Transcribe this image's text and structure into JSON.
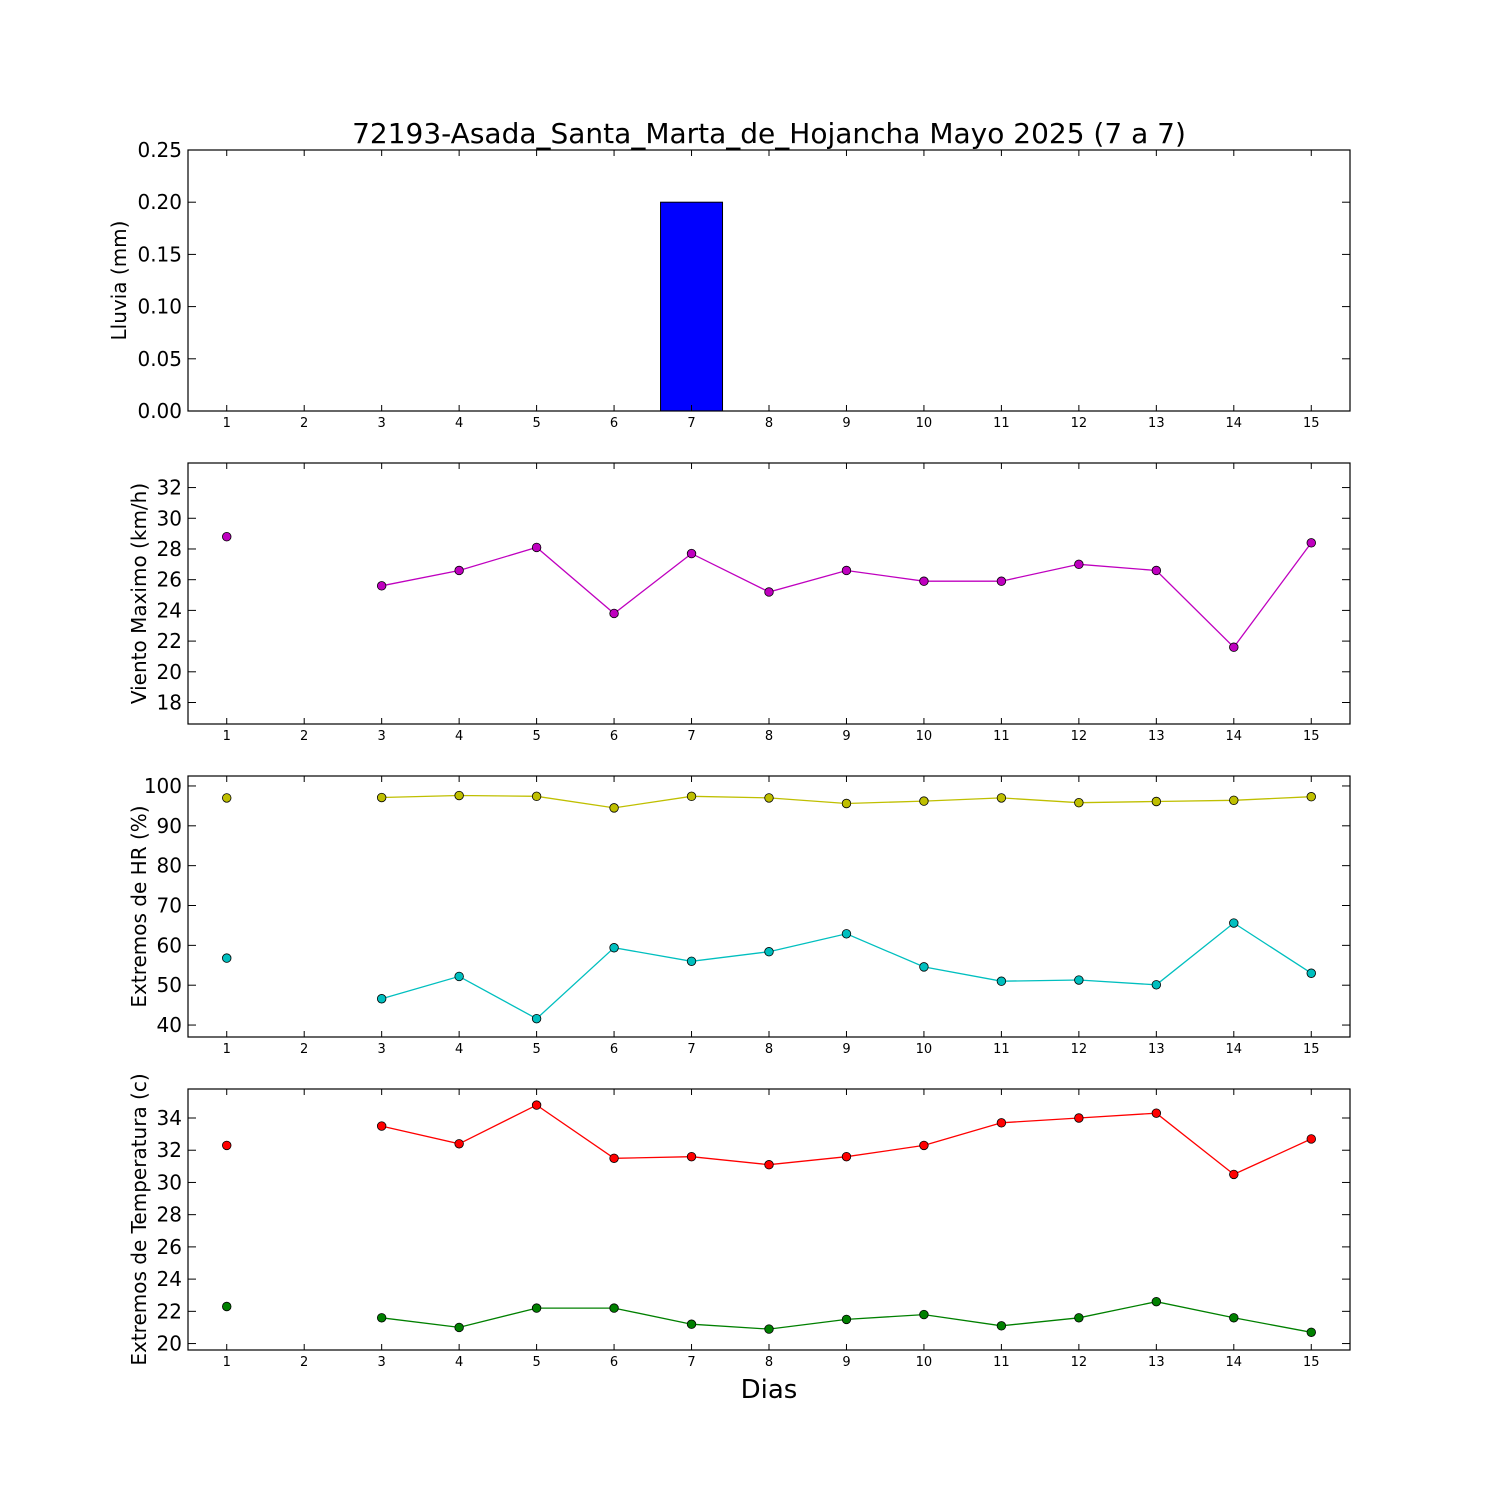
{
  "figure": {
    "title": "72193-Asada_Santa_Marta_de_Hojancha Mayo 2025  (7 a 7)",
    "xlabel": "Dias"
  },
  "chart_data": [
    {
      "type": "bar",
      "ylabel": "Lluvia (mm)",
      "ylim": [
        0,
        0.25
      ],
      "yticks": [
        "0.00",
        "0.05",
        "0.10",
        "0.15",
        "0.20",
        "0.25"
      ],
      "x": [
        1,
        2,
        3,
        4,
        5,
        6,
        7,
        8,
        9,
        10,
        11,
        12,
        13,
        14,
        15
      ],
      "xlim": [
        0.5,
        15.5
      ],
      "series": [
        {
          "values": [
            0,
            0,
            0,
            0,
            0,
            0,
            0.2,
            0,
            0,
            0,
            0,
            0,
            0,
            0,
            0
          ],
          "color": "#0000ff"
        }
      ]
    },
    {
      "type": "line",
      "ylabel": "Viento Maximo (km/h)",
      "ylim": [
        16.6,
        33.6
      ],
      "yticks": [
        "18",
        "20",
        "22",
        "24",
        "26",
        "28",
        "30",
        "32"
      ],
      "x": [
        1,
        2,
        3,
        4,
        5,
        6,
        7,
        8,
        9,
        10,
        11,
        12,
        13,
        14,
        15
      ],
      "xlim": [
        0.5,
        15.5
      ],
      "series": [
        {
          "values": [
            28.8,
            null,
            25.6,
            26.6,
            28.1,
            23.8,
            27.7,
            25.2,
            26.6,
            25.9,
            25.9,
            27.0,
            26.6,
            21.6,
            28.4
          ],
          "color": "#bf00bf"
        }
      ]
    },
    {
      "type": "line",
      "ylabel": "Extremos de HR (%)",
      "ylim": [
        37,
        102.5
      ],
      "yticks": [
        "40",
        "50",
        "60",
        "70",
        "80",
        "90",
        "100"
      ],
      "x": [
        1,
        2,
        3,
        4,
        5,
        6,
        7,
        8,
        9,
        10,
        11,
        12,
        13,
        14,
        15
      ],
      "xlim": [
        0.5,
        15.5
      ],
      "series": [
        {
          "values": [
            97.0,
            null,
            97.1,
            97.6,
            97.4,
            94.5,
            97.4,
            97.0,
            95.6,
            96.2,
            97.0,
            95.8,
            96.1,
            96.4,
            97.3
          ],
          "color": "#bfbf00"
        },
        {
          "values": [
            56.8,
            null,
            46.6,
            52.2,
            41.6,
            59.4,
            56.0,
            58.4,
            62.9,
            54.6,
            51.0,
            51.3,
            50.1,
            65.6,
            53.0
          ],
          "color": "#00bfbf"
        }
      ]
    },
    {
      "type": "line",
      "ylabel": "Extremos de Temperatura (c)",
      "ylim": [
        19.6,
        35.8
      ],
      "yticks": [
        "20",
        "22",
        "24",
        "26",
        "28",
        "30",
        "32",
        "34"
      ],
      "x": [
        1,
        2,
        3,
        4,
        5,
        6,
        7,
        8,
        9,
        10,
        11,
        12,
        13,
        14,
        15
      ],
      "xlim": [
        0.5,
        15.5
      ],
      "series": [
        {
          "values": [
            32.3,
            null,
            33.5,
            32.4,
            34.8,
            31.5,
            31.6,
            31.1,
            31.6,
            32.3,
            33.7,
            34.0,
            34.3,
            30.5,
            32.7
          ],
          "color": "#ff0000"
        },
        {
          "values": [
            22.3,
            null,
            21.6,
            21.0,
            22.2,
            22.2,
            21.2,
            20.9,
            21.5,
            21.8,
            21.1,
            21.6,
            22.6,
            21.6,
            20.7
          ],
          "color": "#008000"
        }
      ]
    }
  ]
}
